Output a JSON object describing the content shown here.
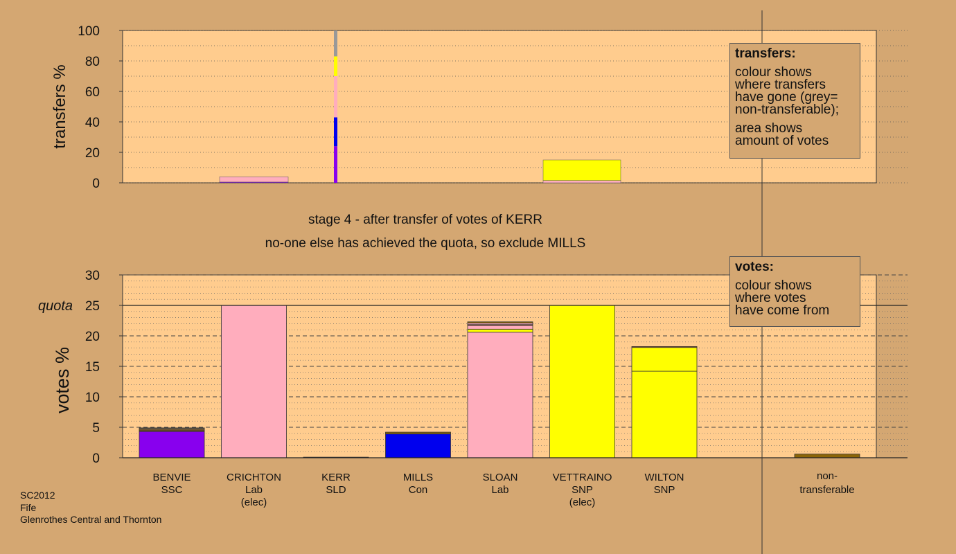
{
  "colors": {
    "background": "#d4a772",
    "plot_bg": "#ffcc8e",
    "SSC": "#8800ee",
    "Lab": "#ffadbd",
    "SLD": "#8b6508",
    "Con": "#0000ee",
    "SNP": "#ffff00",
    "nontransferable": "#999999",
    "other": "#a0522d"
  },
  "stage_title": "stage 4 - after transfer of votes of KERR",
  "stage_subtitle": "no-one else has achieved the quota, so exclude MILLS",
  "footer": [
    "SC2012",
    "Fife",
    "Glenrothes Central and Thornton"
  ],
  "legend_transfers": {
    "title": "transfers:",
    "line1": "colour shows\nwhere transfers\nhave gone (grey=\nnon-transferable);",
    "line2": "area shows\namount of votes"
  },
  "legend_votes": {
    "title": "votes:",
    "line1": "colour shows\nwhere votes\nhave come from"
  },
  "chart_data": [
    {
      "type": "bar",
      "title": "",
      "ylabel": "transfers %",
      "ylim": [
        0,
        100
      ],
      "yticks": [
        0,
        20,
        40,
        60,
        80,
        100
      ],
      "grid": "dotted",
      "transfer_from": "KERR",
      "transfer_composition_pct": [
        {
          "to": "SSC",
          "from": 0,
          "to_pct": 24
        },
        {
          "to": "Con",
          "from": 24,
          "to_pct": 43
        },
        {
          "to": "Lab",
          "from": 43,
          "to_pct": 70
        },
        {
          "to": "SNP",
          "from": 70,
          "to_pct": 83
        },
        {
          "to": "nontransferable",
          "from": 83,
          "to_pct": 100
        }
      ],
      "recipient_bars": [
        {
          "candidate": "CRICHTON",
          "parts": [
            {
              "c": "SSC",
              "h": 0.5
            },
            {
              "c": "Lab",
              "h": 3.5
            }
          ]
        },
        {
          "candidate": "VETTRAINO",
          "parts": [
            {
              "c": "Lab",
              "h": 1.5
            },
            {
              "c": "SNP",
              "h": 13.5
            }
          ]
        }
      ]
    },
    {
      "type": "bar",
      "title": "",
      "ylabel": "votes %",
      "ylim": [
        0,
        30
      ],
      "yticks": [
        0,
        5,
        10,
        15,
        20,
        25,
        30
      ],
      "quota_label": "quota",
      "quota": 25,
      "grid": "dashed",
      "candidates": [
        {
          "name": "BENVIE",
          "party": "SSC",
          "note": "",
          "segments": [
            {
              "c": "SSC",
              "v": 4.3
            },
            {
              "c": "other",
              "v": 0.15
            },
            {
              "c": "SLD",
              "v": 0.2
            },
            {
              "c": "Lab",
              "v": 0.15
            },
            {
              "c": "SNP",
              "v": 0.1
            }
          ]
        },
        {
          "name": "CRICHTON",
          "party": "Lab",
          "note": "(elec)",
          "segments": [
            {
              "c": "Lab",
              "v": 25.0
            }
          ]
        },
        {
          "name": "KERR",
          "party": "SLD",
          "note": "",
          "segments": [
            {
              "c": "SLD",
              "v": 0.1
            }
          ]
        },
        {
          "name": "MILLS",
          "party": "Con",
          "note": "",
          "segments": [
            {
              "c": "Con",
              "v": 3.9
            },
            {
              "c": "SLD",
              "v": 0.3
            }
          ]
        },
        {
          "name": "SLOAN",
          "party": "Lab",
          "note": "",
          "segments": [
            {
              "c": "Lab",
              "v": 20.6
            },
            {
              "c": "SNP",
              "v": 0.5
            },
            {
              "c": "Lab",
              "v": 0.6
            },
            {
              "c": "other",
              "v": 0.15
            },
            {
              "c": "Lab",
              "v": 0.25
            },
            {
              "c": "SLD",
              "v": 0.2
            }
          ]
        },
        {
          "name": "VETTRAINO",
          "party": "SNP",
          "note": "(elec)",
          "segments": [
            {
              "c": "SNP",
              "v": 25.0
            }
          ]
        },
        {
          "name": "WILTON",
          "party": "SNP",
          "note": "",
          "segments": [
            {
              "c": "SNP",
              "v": 14.2
            },
            {
              "c": "SNP",
              "v": 3.9
            },
            {
              "c": "other",
              "v": 0.15
            }
          ]
        }
      ],
      "nontransferable": {
        "name": "non-",
        "name2": "transferable",
        "value": 0.6
      }
    }
  ]
}
